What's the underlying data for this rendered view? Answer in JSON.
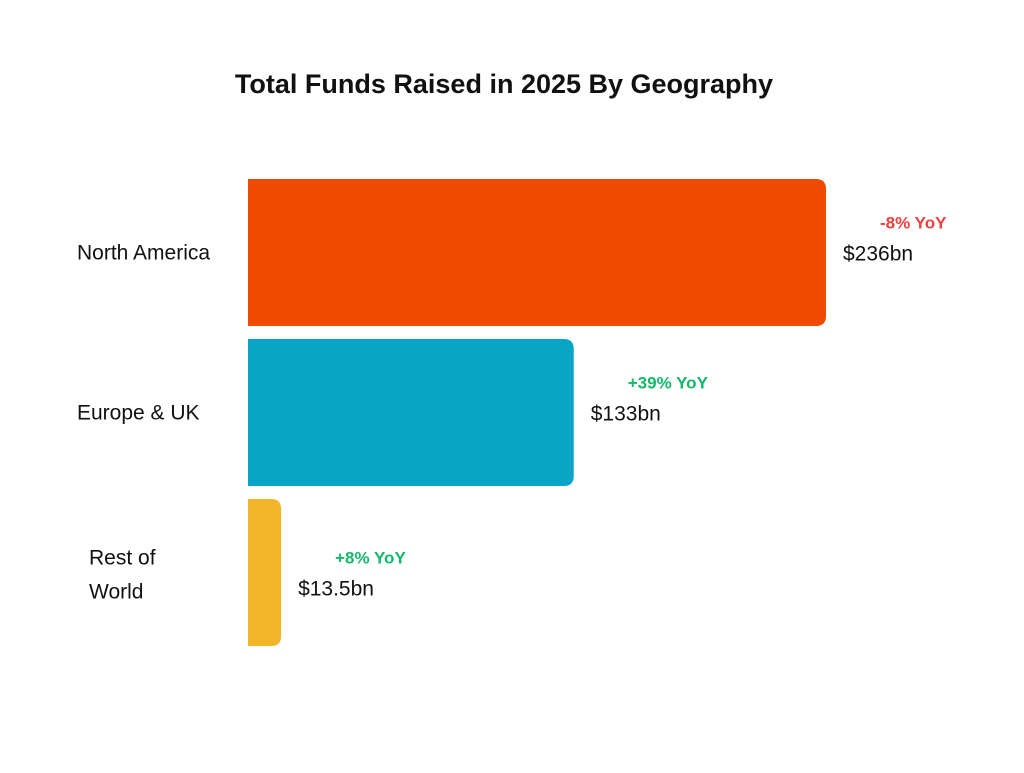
{
  "chart_data": {
    "type": "bar",
    "orientation": "horizontal",
    "title": "Total Funds Raised in 2025 By Geography",
    "xlabel": "",
    "ylabel": "",
    "unit": "bn USD",
    "categories": [
      "North America",
      "Europe & UK",
      "Rest of World"
    ],
    "category_lines": [
      [
        "North America"
      ],
      [
        "Europe & UK"
      ],
      [
        "Rest of",
        "World"
      ]
    ],
    "values": [
      236,
      133,
      13.5
    ],
    "value_labels": [
      "$236bn",
      "$133bn",
      "$13.5bn"
    ],
    "yoy_labels": [
      "-8% YoY",
      "+39% YoY",
      "+8% YoY"
    ],
    "yoy_change": [
      -8,
      39,
      8
    ],
    "bar_colors": [
      "#F04A00",
      "#08A5C6",
      "#F2B429"
    ],
    "yoy_colors": [
      "#EE4040",
      "#14B86A",
      "#14B86A"
    ],
    "grid": false,
    "legend": "none"
  }
}
